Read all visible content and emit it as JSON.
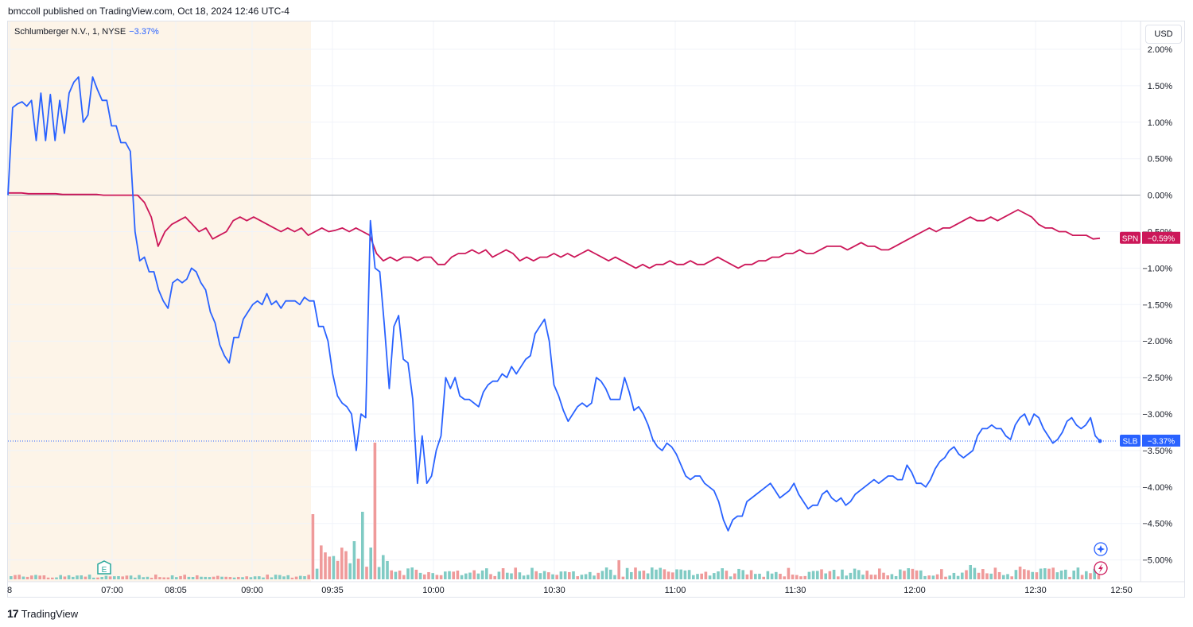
{
  "caption": "bmccoll published on TradingView.com, Oct 18, 2024 12:46 UTC-4",
  "legend": {
    "symbol": "Schlumberger N.V., 1, NYSE",
    "change": "−3.37%"
  },
  "currency_button": "USD",
  "footer": {
    "mark": "17",
    "brand": "TradingView"
  },
  "earnings_marker": {
    "label": "E",
    "time_label": "07:00"
  },
  "icons": [
    "compass-icon",
    "lightning-icon"
  ],
  "colors": {
    "slb": "#2962ff",
    "spn": "#cc1759",
    "premarket": "#fdf4e8",
    "vol_up": "#80cbc4",
    "vol_down": "#ef9a9a"
  },
  "chart_data": {
    "type": "line",
    "x_ticks": [
      "8",
      "07:00",
      "08:05",
      "09:00",
      "09:35",
      "10:00",
      "10:30",
      "11:00",
      "11:30",
      "12:00",
      "12:30",
      "12:50"
    ],
    "y_ticks": [
      "2.00%",
      "1.50%",
      "1.00%",
      "0.50%",
      "0.00%",
      "−0.50%",
      "−1.00%",
      "−1.50%",
      "−2.00%",
      "−2.50%",
      "−3.00%",
      "−3.50%",
      "−4.00%",
      "−4.50%",
      "−5.00%"
    ],
    "ylim": [
      -5.2,
      2.0
    ],
    "series": [
      {
        "name": "SLB",
        "last_label": "−3.37%",
        "values": [
          0.0,
          1.2,
          1.25,
          1.28,
          1.22,
          1.3,
          0.75,
          1.4,
          0.75,
          1.38,
          0.75,
          1.3,
          0.85,
          1.4,
          1.55,
          1.62,
          1.0,
          1.1,
          1.62,
          1.45,
          1.3,
          1.3,
          0.95,
          0.95,
          0.72,
          0.72,
          0.6,
          -0.5,
          -0.9,
          -0.85,
          -1.05,
          -1.05,
          -1.3,
          -1.45,
          -1.55,
          -1.2,
          -1.15,
          -1.2,
          -1.15,
          -1.0,
          -1.05,
          -1.2,
          -1.3,
          -1.6,
          -1.75,
          -2.05,
          -2.2,
          -2.3,
          -1.95,
          -1.95,
          -1.7,
          -1.6,
          -1.5,
          -1.45,
          -1.5,
          -1.35,
          -1.5,
          -1.45,
          -1.55,
          -1.45,
          -1.45,
          -1.45,
          -1.5,
          -1.4,
          -1.45,
          -1.45,
          -1.8,
          -1.8,
          -2.0,
          -2.45,
          -2.75,
          -2.85,
          -2.9,
          -3.0,
          -3.5,
          -3.0,
          -3.05,
          -0.35,
          -1.0,
          -1.05,
          -1.8,
          -2.65,
          -1.8,
          -1.65,
          -2.25,
          -2.3,
          -2.8,
          -3.95,
          -3.3,
          -3.95,
          -3.85,
          -3.5,
          -3.3,
          -2.5,
          -2.65,
          -2.5,
          -2.75,
          -2.8,
          -2.8,
          -2.85,
          -2.9,
          -2.7,
          -2.6,
          -2.55,
          -2.55,
          -2.45,
          -2.5,
          -2.35,
          -2.45,
          -2.35,
          -2.25,
          -2.2,
          -1.9,
          -1.8,
          -1.7,
          -2.0,
          -2.6,
          -2.75,
          -2.95,
          -3.1,
          -3.0,
          -2.9,
          -2.85,
          -2.9,
          -2.85,
          -2.5,
          -2.55,
          -2.65,
          -2.8,
          -2.8,
          -2.8,
          -2.5,
          -2.7,
          -2.95,
          -2.9,
          -3.0,
          -3.15,
          -3.35,
          -3.45,
          -3.5,
          -3.4,
          -3.45,
          -3.55,
          -3.7,
          -3.85,
          -3.9,
          -3.85,
          -3.85,
          -3.95,
          -4.0,
          -4.05,
          -4.2,
          -4.45,
          -4.6,
          -4.45,
          -4.4,
          -4.4,
          -4.2,
          -4.15,
          -4.1,
          -4.05,
          -4.0,
          -3.95,
          -4.05,
          -4.15,
          -4.1,
          -4.05,
          -3.95,
          -4.1,
          -4.2,
          -4.3,
          -4.25,
          -4.25,
          -4.1,
          -4.05,
          -4.15,
          -4.2,
          -4.15,
          -4.25,
          -4.2,
          -4.1,
          -4.05,
          -4.0,
          -3.95,
          -3.9,
          -3.95,
          -3.9,
          -3.85,
          -3.85,
          -3.9,
          -3.9,
          -3.7,
          -3.8,
          -3.95,
          -3.95,
          -4.0,
          -3.9,
          -3.75,
          -3.65,
          -3.6,
          -3.5,
          -3.45,
          -3.55,
          -3.6,
          -3.55,
          -3.5,
          -3.3,
          -3.2,
          -3.2,
          -3.15,
          -3.2,
          -3.2,
          -3.3,
          -3.35,
          -3.15,
          -3.05,
          -3.0,
          -3.15,
          -3.0,
          -3.05,
          -3.2,
          -3.3,
          -3.4,
          -3.35,
          -3.25,
          -3.1,
          -3.05,
          -3.15,
          -3.2,
          -3.15,
          -3.05,
          -3.3,
          -3.37
        ]
      },
      {
        "name": "SPN",
        "last_label": "−0.59%",
        "values": [
          0.03,
          0.03,
          0.03,
          0.02,
          0.02,
          0.02,
          0.02,
          0.02,
          0.01,
          0.01,
          0.01,
          0.01,
          0.01,
          0.01,
          0.0,
          0.0,
          0.0,
          0.0,
          0.0,
          0.0,
          -0.1,
          -0.3,
          -0.7,
          -0.5,
          -0.4,
          -0.35,
          -0.3,
          -0.4,
          -0.5,
          -0.45,
          -0.6,
          -0.55,
          -0.5,
          -0.35,
          -0.3,
          -0.35,
          -0.3,
          -0.35,
          -0.4,
          -0.45,
          -0.5,
          -0.45,
          -0.5,
          -0.45,
          -0.55,
          -0.5,
          -0.45,
          -0.5,
          -0.48,
          -0.45,
          -0.5,
          -0.45,
          -0.5,
          -0.55,
          -0.8,
          -0.9,
          -0.85,
          -0.9,
          -0.85,
          -0.85,
          -0.9,
          -0.85,
          -0.85,
          -0.95,
          -0.95,
          -0.85,
          -0.8,
          -0.8,
          -0.75,
          -0.8,
          -0.75,
          -0.85,
          -0.8,
          -0.75,
          -0.8,
          -0.9,
          -0.85,
          -0.9,
          -0.85,
          -0.85,
          -0.8,
          -0.85,
          -0.8,
          -0.85,
          -0.8,
          -0.75,
          -0.8,
          -0.85,
          -0.9,
          -0.85,
          -0.9,
          -0.95,
          -1.0,
          -0.95,
          -1.0,
          -0.95,
          -0.95,
          -0.9,
          -0.95,
          -0.95,
          -0.9,
          -0.95,
          -0.95,
          -0.9,
          -0.85,
          -0.9,
          -0.95,
          -1.0,
          -0.95,
          -0.95,
          -0.9,
          -0.9,
          -0.85,
          -0.85,
          -0.8,
          -0.8,
          -0.75,
          -0.8,
          -0.8,
          -0.75,
          -0.7,
          -0.7,
          -0.7,
          -0.75,
          -0.7,
          -0.65,
          -0.7,
          -0.7,
          -0.75,
          -0.75,
          -0.7,
          -0.65,
          -0.6,
          -0.55,
          -0.5,
          -0.45,
          -0.5,
          -0.45,
          -0.45,
          -0.4,
          -0.35,
          -0.3,
          -0.35,
          -0.35,
          -0.3,
          -0.35,
          -0.3,
          -0.25,
          -0.2,
          -0.25,
          -0.3,
          -0.4,
          -0.45,
          -0.45,
          -0.5,
          -0.5,
          -0.55,
          -0.55,
          -0.55,
          -0.6,
          -0.59
        ]
      }
    ],
    "premarket_end_label": "09:35",
    "volume": {
      "note_colors": "green=up, red=down"
    }
  }
}
